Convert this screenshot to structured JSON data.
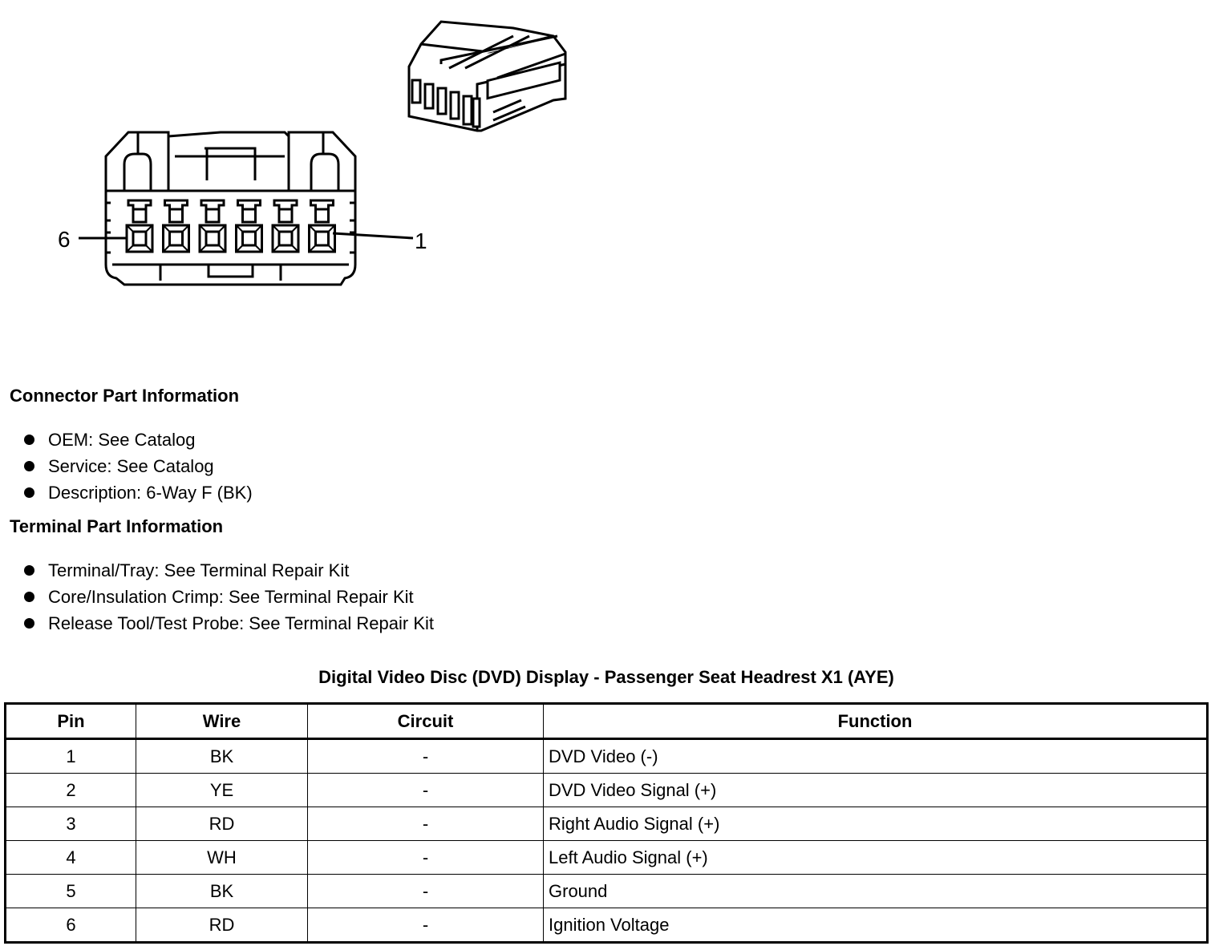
{
  "diagram": {
    "pin_labels": [
      "6",
      "1"
    ]
  },
  "connector_info": {
    "heading": "Connector Part Information",
    "items": [
      "OEM: See Catalog",
      "Service: See Catalog",
      "Description: 6-Way F (BK)"
    ]
  },
  "terminal_info": {
    "heading": "Terminal Part Information",
    "items": [
      "Terminal/Tray: See Terminal Repair Kit",
      "Core/Insulation Crimp: See Terminal Repair Kit",
      "Release Tool/Test Probe: See Terminal Repair Kit"
    ]
  },
  "table": {
    "title": "Digital Video Disc (DVD) Display - Passenger Seat Headrest X1 (AYE)",
    "headers": [
      "Pin",
      "Wire",
      "Circuit",
      "Function"
    ],
    "rows": [
      [
        "1",
        "BK",
        "-",
        "DVD Video (-)"
      ],
      [
        "2",
        "YE",
        "-",
        "DVD Video Signal (+)"
      ],
      [
        "3",
        "RD",
        "-",
        "Right Audio Signal (+)"
      ],
      [
        "4",
        "WH",
        "-",
        "Left Audio Signal (+)"
      ],
      [
        "5",
        "BK",
        "-",
        "Ground"
      ],
      [
        "6",
        "RD",
        "-",
        "Ignition Voltage"
      ]
    ]
  }
}
